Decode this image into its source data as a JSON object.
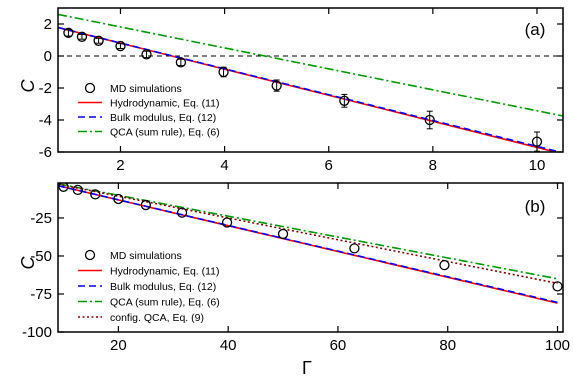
{
  "chart_data": [
    {
      "type": "line",
      "panel_label": "(a)",
      "ylabel": "C",
      "xlim": [
        0.8,
        10.5
      ],
      "ylim": [
        -6,
        3
      ],
      "x_ticks": [
        2,
        4,
        6,
        8,
        10
      ],
      "x_tick_labels": [
        "2",
        "4",
        "6",
        "8",
        "10"
      ],
      "y_ticks": [
        -6,
        -4,
        -2,
        0,
        2
      ],
      "y_tick_labels": [
        "-6",
        "-4",
        "-2",
        "0",
        "2"
      ],
      "zero_line": true,
      "legend_position": "center-left",
      "series": [
        {
          "name": "MD simulations",
          "kind": "points",
          "color": "#000000",
          "x": [
            1.0,
            1.26,
            1.58,
            2.0,
            2.5,
            3.16,
            3.98,
            5.0,
            6.3,
            7.94,
            10.0
          ],
          "y": [
            1.45,
            1.2,
            0.95,
            0.62,
            0.1,
            -0.4,
            -1.0,
            -1.85,
            -2.8,
            -4.0,
            -5.35
          ],
          "err": [
            0.2,
            0.15,
            0.15,
            0.15,
            0.2,
            0.2,
            0.3,
            0.35,
            0.4,
            0.55,
            0.6
          ]
        },
        {
          "name": "Hydrodynamic,  Eq. (11)",
          "kind": "line",
          "style": "solid",
          "color": "#ff0000",
          "x": [
            0.8,
            10.5
          ],
          "y": [
            1.78,
            -6.12
          ]
        },
        {
          "name": "Bulk modulus,   Eq. (12)",
          "kind": "line",
          "style": "dashed",
          "color": "#0000ff",
          "x": [
            0.8,
            10.5
          ],
          "y": [
            1.78,
            -6.05
          ]
        },
        {
          "name": "QCA (sum rule), Eq. (6)",
          "kind": "line",
          "style": "dashdot",
          "color": "#009900",
          "x": [
            0.8,
            10.5
          ],
          "y": [
            2.6,
            -3.75
          ]
        }
      ]
    },
    {
      "type": "line",
      "panel_label": "(b)",
      "ylabel": "C",
      "xlabel": "Γ",
      "xlim": [
        9,
        101
      ],
      "ylim": [
        -100,
        -2
      ],
      "x_ticks": [
        20,
        40,
        60,
        80,
        100
      ],
      "x_tick_labels": [
        "20",
        "40",
        "60",
        "80",
        "100"
      ],
      "y_ticks": [
        -100,
        -75,
        -50,
        -25
      ],
      "y_tick_labels": [
        "-100",
        "-75",
        "-50",
        "-25"
      ],
      "legend_position": "bottom-left",
      "series": [
        {
          "name": "MD simulations",
          "kind": "points",
          "color": "#000000",
          "x": [
            10,
            12.6,
            15.8,
            20,
            25,
            31.6,
            39.8,
            50,
            63,
            79.4,
            100
          ],
          "y": [
            -4.5,
            -6.5,
            -9.5,
            -12.5,
            -16.5,
            -21.5,
            -28,
            -35.5,
            -45,
            -56,
            -70
          ]
        },
        {
          "name": "Hydrodynamic,  Eq. (11)",
          "kind": "line",
          "style": "solid",
          "color": "#ff0000",
          "x": [
            9,
            100
          ],
          "y": [
            -3.8,
            -81
          ]
        },
        {
          "name": "Bulk modulus,   Eq. (12)",
          "kind": "line",
          "style": "dashed",
          "color": "#0000ff",
          "x": [
            9,
            100
          ],
          "y": [
            -3.8,
            -80.5
          ]
        },
        {
          "name": "QCA (sum rule), Eq. (6)",
          "kind": "line",
          "style": "dashdot",
          "color": "#009900",
          "x": [
            9,
            100
          ],
          "y": [
            -2.5,
            -65
          ]
        },
        {
          "name": "config. QCA,      Eq. (9)",
          "kind": "line",
          "style": "dotted",
          "color": "#800000",
          "x": [
            9,
            100
          ],
          "y": [
            -2.8,
            -68
          ]
        }
      ]
    }
  ]
}
